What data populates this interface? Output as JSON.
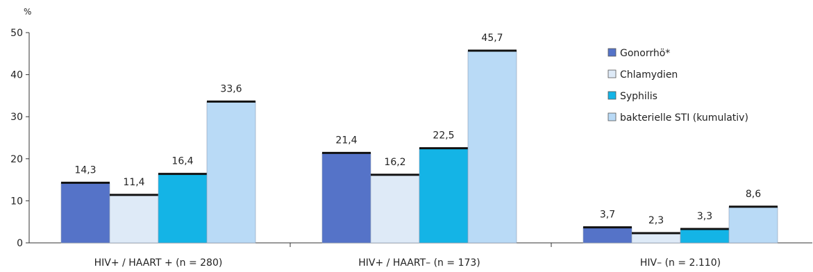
{
  "chart_data": {
    "type": "bar",
    "y_unit_label": "%",
    "ylim": [
      0,
      50
    ],
    "yticks": [
      "0",
      "10",
      "20",
      "30",
      "40",
      "50"
    ],
    "grid": false,
    "legend_position": "right",
    "categories": [
      "HIV+ / HAART + (n = 280)",
      "HIV+ / HAART– (n = 173)",
      "HIV– (n = 2.110)"
    ],
    "series": [
      {
        "name": "Gonorrhö*",
        "color": "#5573c8",
        "values": [
          14.3,
          21.4,
          3.7
        ],
        "labels": [
          "14,3",
          "21,4",
          "3,7"
        ]
      },
      {
        "name": "Chlamydien",
        "color": "#deeaf7",
        "values": [
          11.4,
          16.2,
          2.3
        ],
        "labels": [
          "11,4",
          "16,2",
          "2,3"
        ]
      },
      {
        "name": "Syphilis",
        "color": "#14b4e6",
        "values": [
          16.4,
          22.5,
          3.3
        ],
        "labels": [
          "16,4",
          "22,5",
          "3,3"
        ]
      },
      {
        "name": "bakterielle STI (kumulativ)",
        "color": "#b9daf6",
        "values": [
          33.6,
          45.7,
          8.6
        ],
        "labels": [
          "33,6",
          "45,7",
          "8,6"
        ]
      }
    ]
  }
}
